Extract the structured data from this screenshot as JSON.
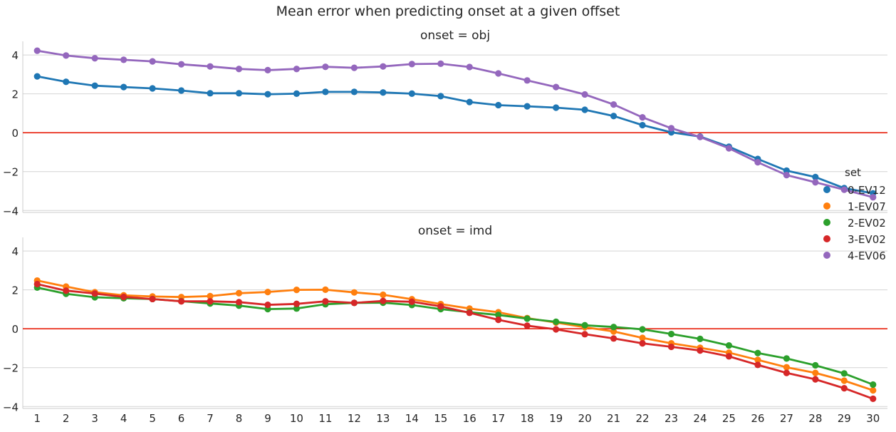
{
  "chart_data": {
    "type": "line",
    "title": "Mean error when predicting onset at a given offset",
    "x": [
      1,
      2,
      3,
      4,
      5,
      6,
      7,
      8,
      9,
      10,
      11,
      12,
      13,
      14,
      15,
      16,
      17,
      18,
      19,
      20,
      21,
      22,
      23,
      24,
      25,
      26,
      27,
      28,
      29,
      30
    ],
    "ylim": [
      -4.1,
      4.7
    ],
    "yticks": [
      -4,
      -2,
      0,
      2,
      4
    ],
    "grid": true,
    "reference_line": {
      "y": 0,
      "color": "#e8200c"
    },
    "legend": {
      "title": "set",
      "placement": "right",
      "entries": [
        {
          "name": "0-EV12",
          "color": "#1f77b4"
        },
        {
          "name": "1-EV07",
          "color": "#ff7f0e"
        },
        {
          "name": "2-EV02",
          "color": "#2ca02c"
        },
        {
          "name": "3-EV02",
          "color": "#d62728"
        },
        {
          "name": "4-EV06",
          "color": "#9467bd"
        }
      ]
    },
    "panels": [
      {
        "title": "onset = obj",
        "series": [
          {
            "name": "0-EV12",
            "color": "#1f77b4",
            "values": [
              2.9,
              2.62,
              2.42,
              2.35,
              2.28,
              2.17,
              2.03,
              2.03,
              1.98,
              2.01,
              2.1,
              2.1,
              2.07,
              2.01,
              1.88,
              1.58,
              1.42,
              1.36,
              1.29,
              1.18,
              0.86,
              0.39,
              0.02,
              -0.2,
              -0.72,
              -1.35,
              -1.95,
              -2.28,
              -2.85,
              -3.12
            ]
          },
          {
            "name": "4-EV06",
            "color": "#9467bd",
            "values": [
              4.22,
              3.97,
              3.83,
              3.75,
              3.67,
              3.52,
              3.41,
              3.28,
              3.22,
              3.28,
              3.39,
              3.34,
              3.41,
              3.53,
              3.55,
              3.38,
              3.05,
              2.69,
              2.35,
              1.97,
              1.45,
              0.79,
              0.23,
              -0.22,
              -0.8,
              -1.52,
              -2.18,
              -2.55,
              -2.93,
              -3.32
            ]
          }
        ]
      },
      {
        "title": "onset = imd",
        "series": [
          {
            "name": "1-EV07",
            "color": "#ff7f0e",
            "values": [
              2.48,
              2.17,
              1.88,
              1.72,
              1.66,
              1.63,
              1.68,
              1.83,
              1.89,
              2.0,
              2.01,
              1.87,
              1.75,
              1.52,
              1.27,
              1.04,
              0.85,
              0.55,
              0.32,
              0.08,
              -0.14,
              -0.47,
              -0.75,
              -0.98,
              -1.23,
              -1.6,
              -1.98,
              -2.27,
              -2.67,
              -3.17
            ]
          },
          {
            "name": "2-EV02",
            "color": "#2ca02c",
            "values": [
              2.12,
              1.8,
              1.62,
              1.57,
              1.53,
              1.42,
              1.3,
              1.19,
              1.01,
              1.04,
              1.26,
              1.33,
              1.34,
              1.22,
              1.01,
              0.85,
              0.71,
              0.52,
              0.36,
              0.18,
              0.09,
              -0.03,
              -0.27,
              -0.52,
              -0.86,
              -1.25,
              -1.53,
              -1.88,
              -2.3,
              -2.87
            ]
          },
          {
            "name": "3-EV02",
            "color": "#d62728",
            "values": [
              2.3,
              1.96,
              1.81,
              1.64,
              1.53,
              1.41,
              1.41,
              1.37,
              1.23,
              1.28,
              1.41,
              1.33,
              1.43,
              1.39,
              1.15,
              0.82,
              0.46,
              0.16,
              -0.03,
              -0.28,
              -0.5,
              -0.75,
              -0.93,
              -1.12,
              -1.42,
              -1.86,
              -2.27,
              -2.6,
              -3.06,
              -3.6
            ]
          }
        ]
      }
    ]
  }
}
